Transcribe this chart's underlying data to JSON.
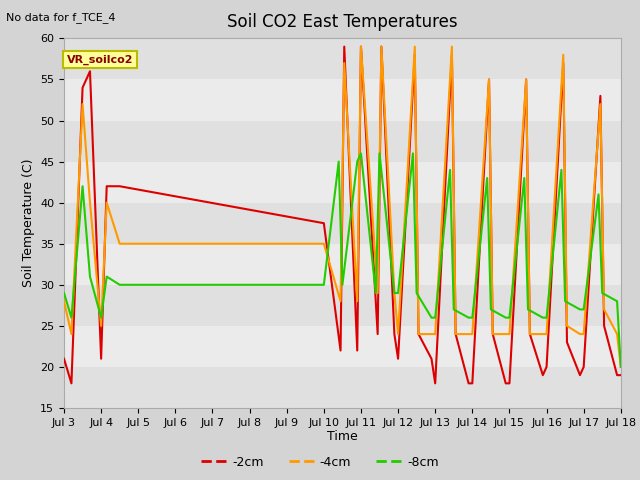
{
  "title": "Soil CO2 East Temperatures",
  "no_data_text": "No data for f_TCE_4",
  "vr_label": "VR_soilco2",
  "ylabel": "Soil Temperature (C)",
  "xlabel": "Time",
  "ylim": [
    15,
    60
  ],
  "yticks": [
    15,
    20,
    25,
    30,
    35,
    40,
    45,
    50,
    55,
    60
  ],
  "xtick_labels": [
    "Jul 3",
    "Jul 4",
    "Jul 5",
    "Jul 6",
    "Jul 7",
    "Jul 8",
    "Jul 9",
    "Jul 10",
    "Jul 11",
    "Jul 12",
    "Jul 13",
    "Jul 14",
    "Jul 15",
    "Jul 16",
    "Jul 17",
    "Jul 18"
  ],
  "legend_items": [
    "-2cm",
    "-4cm",
    "-8cm"
  ],
  "line_colors": [
    "#dd0000",
    "#ff9900",
    "#22cc00"
  ],
  "red_x": [
    3.0,
    3.2,
    3.5,
    3.7,
    4.0,
    4.15,
    4.5,
    10.0,
    10.45,
    10.55,
    10.9,
    11.0,
    11.45,
    11.55,
    11.9,
    12.0,
    12.45,
    12.55,
    12.9,
    13.0,
    13.45,
    13.55,
    13.9,
    14.0,
    14.45,
    14.55,
    14.9,
    15.0,
    15.45,
    15.55,
    15.9,
    16.0,
    16.45,
    16.55,
    16.9,
    17.0,
    17.45,
    17.55,
    17.9,
    18.0
  ],
  "red_y": [
    21,
    18,
    54,
    56,
    21,
    42,
    42,
    37.5,
    22,
    59,
    22,
    59,
    24,
    59,
    24,
    21,
    58,
    24,
    21,
    18,
    58,
    24,
    18,
    18,
    55,
    24,
    18,
    18,
    55,
    24,
    19,
    20,
    57,
    23,
    19,
    20,
    53,
    25,
    19,
    19
  ],
  "orange_x": [
    3.0,
    3.2,
    3.5,
    3.7,
    4.0,
    4.15,
    4.5,
    10.0,
    10.45,
    10.55,
    10.9,
    11.0,
    11.45,
    11.55,
    11.9,
    12.0,
    12.45,
    12.55,
    12.9,
    13.0,
    13.45,
    13.55,
    13.9,
    14.0,
    14.45,
    14.55,
    14.9,
    15.0,
    15.45,
    15.55,
    15.9,
    16.0,
    16.45,
    16.55,
    16.9,
    17.0,
    17.45,
    17.55,
    17.9,
    18.0
  ],
  "orange_y": [
    28,
    24,
    52,
    40,
    25,
    40,
    35,
    35,
    28,
    57,
    28,
    59,
    29,
    59,
    29,
    24,
    59,
    24,
    24,
    24,
    59,
    24,
    24,
    24,
    55,
    24,
    24,
    24,
    55,
    24,
    24,
    24,
    58,
    25,
    24,
    24,
    52,
    27,
    24,
    20
  ],
  "green_x": [
    3.0,
    3.2,
    3.5,
    3.7,
    4.0,
    4.15,
    4.5,
    10.0,
    10.4,
    10.5,
    10.9,
    11.0,
    11.4,
    11.5,
    11.9,
    12.0,
    12.4,
    12.5,
    12.9,
    13.0,
    13.4,
    13.5,
    13.9,
    14.0,
    14.4,
    14.5,
    14.9,
    15.0,
    15.4,
    15.5,
    15.9,
    16.0,
    16.4,
    16.5,
    16.9,
    17.0,
    17.4,
    17.5,
    17.9,
    18.0
  ],
  "green_y": [
    29,
    26,
    42,
    31,
    26,
    31,
    30,
    30,
    45,
    30,
    45,
    46,
    29,
    46,
    29,
    29,
    46,
    29,
    26,
    26,
    44,
    27,
    26,
    26,
    43,
    27,
    26,
    26,
    43,
    27,
    26,
    26,
    44,
    28,
    27,
    27,
    41,
    29,
    28,
    20
  ],
  "band_colors": [
    "#e0e0e0",
    "#ebebeb",
    "#e0e0e0",
    "#ebebeb",
    "#e0e0e0",
    "#ebebeb",
    "#e0e0e0",
    "#ebebeb",
    "#e0e0e0"
  ],
  "fig_facecolor": "#d4d4d4",
  "ax_facecolor": "#f2f2f2"
}
